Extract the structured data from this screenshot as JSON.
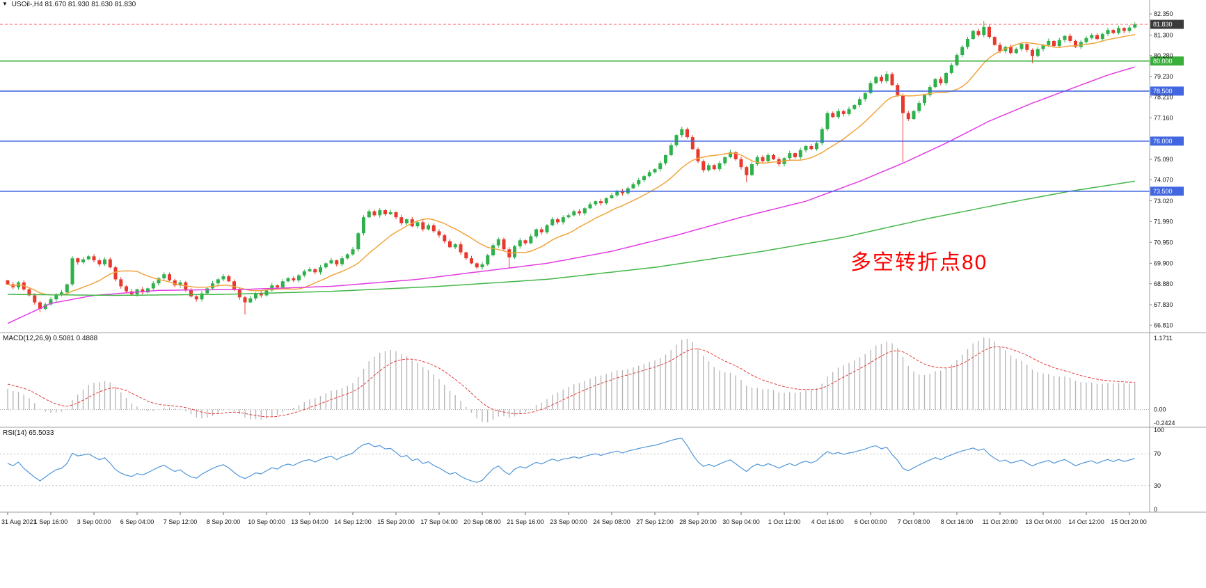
{
  "header": {
    "marker": "▼",
    "title": "USOil-,H4 81.670 81.930 81.630 81.830",
    "symbol": "USOil-",
    "timeframe": "H4"
  },
  "colors": {
    "up": "#2eb14b",
    "down": "#e8392e",
    "ma_fast": "#f2a33c",
    "ma_medium": "#e23ce2",
    "ma_slow": "#43b649",
    "level_green": "#3aae3a",
    "level_blue": "#4166e0",
    "macd_hist": "#b8b8b8",
    "macd_signal": "#e03c3c",
    "rsi_line": "#4f96d8",
    "current_box": "#3b3b3b",
    "current_line": "#ff5a5a",
    "axis_text": "#141414",
    "separator": "#9aa0a6"
  },
  "chart_data": [
    {
      "type": "candlestick",
      "symbol": "USOil-",
      "timeframe": "H4",
      "ohlc_current": {
        "open": 81.67,
        "high": 81.93,
        "low": 81.63,
        "close": 81.83
      },
      "price_range": [
        66.44,
        82.56
      ],
      "first_open": 69.05,
      "closes": [
        68.85,
        68.7,
        68.95,
        68.6,
        68.3,
        67.95,
        67.62,
        67.85,
        68.1,
        68.35,
        68.45,
        68.85,
        70.15,
        69.95,
        70.1,
        70.25,
        70.05,
        69.85,
        70.1,
        69.7,
        69.1,
        68.75,
        68.5,
        68.35,
        68.6,
        68.45,
        68.65,
        68.9,
        69.15,
        69.35,
        69.05,
        68.8,
        68.95,
        68.55,
        68.25,
        68.1,
        68.4,
        68.65,
        68.9,
        69.1,
        69.25,
        69.0,
        68.6,
        68.2,
        67.95,
        68.15,
        68.4,
        68.3,
        68.55,
        68.8,
        68.7,
        69.0,
        69.15,
        69.05,
        69.3,
        69.5,
        69.6,
        69.45,
        69.7,
        69.9,
        70.05,
        69.85,
        70.15,
        70.35,
        70.6,
        71.4,
        72.2,
        72.5,
        72.3,
        72.55,
        72.35,
        72.45,
        72.2,
        71.9,
        72.1,
        71.75,
        71.95,
        71.6,
        71.8,
        71.5,
        71.3,
        71.0,
        70.7,
        70.85,
        70.45,
        70.15,
        69.9,
        69.7,
        69.85,
        70.3,
        70.8,
        71.1,
        70.6,
        70.2,
        70.75,
        71.05,
        70.9,
        71.25,
        71.6,
        71.45,
        71.8,
        72.1,
        71.95,
        72.2,
        72.3,
        72.5,
        72.4,
        72.65,
        72.85,
        73.0,
        72.9,
        73.15,
        73.3,
        73.5,
        73.4,
        73.65,
        73.85,
        74.05,
        74.25,
        74.45,
        74.6,
        74.9,
        75.3,
        75.8,
        76.3,
        76.6,
        76.2,
        75.6,
        75.0,
        74.55,
        74.8,
        74.6,
        74.9,
        75.2,
        75.45,
        75.1,
        74.7,
        74.3,
        74.85,
        75.2,
        75.0,
        75.3,
        75.1,
        74.85,
        75.15,
        75.4,
        75.2,
        75.55,
        75.75,
        75.6,
        75.9,
        76.6,
        77.4,
        77.2,
        77.5,
        77.35,
        77.6,
        77.8,
        78.1,
        78.4,
        78.9,
        79.2,
        79.0,
        79.35,
        78.8,
        78.3,
        77.4,
        77.1,
        77.5,
        77.9,
        78.3,
        78.7,
        79.1,
        78.9,
        79.4,
        79.8,
        80.3,
        80.7,
        81.1,
        81.5,
        81.3,
        81.7,
        81.2,
        80.8,
        80.5,
        80.7,
        80.4,
        80.6,
        80.85,
        80.55,
        80.25,
        80.6,
        80.8,
        81.0,
        80.75,
        81.05,
        81.25,
        81.0,
        80.7,
        80.95,
        81.15,
        81.3,
        81.1,
        81.35,
        81.55,
        81.4,
        81.65,
        81.5,
        81.67,
        81.83
      ],
      "wick_low_overrides": {
        "6": 67.45,
        "44": 67.35,
        "93": 69.65,
        "137": 73.95,
        "166": 74.95,
        "190": 79.9,
        "209": 81.63
      },
      "wick_high_overrides": {
        "125": 76.72,
        "163": 79.5,
        "181": 82.0,
        "209": 81.93
      },
      "moving_averages": [
        {
          "name": "fast",
          "color": "#f2a33c",
          "period": 13
        },
        {
          "name": "medium",
          "color": "#e23ce2",
          "keypoints": [
            [
              0,
              66.9
            ],
            [
              8,
              67.9
            ],
            [
              16,
              68.3
            ],
            [
              28,
              68.55
            ],
            [
              44,
              68.6
            ],
            [
              60,
              68.75
            ],
            [
              76,
              69.1
            ],
            [
              88,
              69.5
            ],
            [
              100,
              69.9
            ],
            [
              112,
              70.5
            ],
            [
              124,
              71.3
            ],
            [
              136,
              72.2
            ],
            [
              148,
              73.0
            ],
            [
              158,
              74.0
            ],
            [
              166,
              74.9
            ],
            [
              174,
              75.9
            ],
            [
              182,
              77.0
            ],
            [
              190,
              77.9
            ],
            [
              198,
              78.7
            ],
            [
              204,
              79.3
            ],
            [
              209,
              79.7
            ]
          ]
        },
        {
          "name": "slow",
          "color": "#43b649",
          "keypoints": [
            [
              0,
              68.35
            ],
            [
              20,
              68.3
            ],
            [
              40,
              68.35
            ],
            [
              60,
              68.5
            ],
            [
              80,
              68.75
            ],
            [
              100,
              69.1
            ],
            [
              120,
              69.7
            ],
            [
              140,
              70.5
            ],
            [
              155,
              71.2
            ],
            [
              170,
              72.1
            ],
            [
              185,
              72.9
            ],
            [
              197,
              73.5
            ],
            [
              209,
              74.0
            ]
          ]
        }
      ],
      "hlines": [
        {
          "price": 80.0,
          "label": "80.000",
          "color": "#3aae3a"
        },
        {
          "price": 78.5,
          "label": "78.500",
          "color": "#4166e0"
        },
        {
          "price": 76.0,
          "label": "76.000",
          "color": "#4166e0"
        },
        {
          "price": 73.5,
          "label": "73.500",
          "color": "#4166e0"
        }
      ],
      "current_price": {
        "price": 81.83,
        "label": "81.830",
        "box": "#3b3b3b",
        "line": "#ff5a5a"
      },
      "axis_labels": [
        {
          "t": "82.350",
          "p": 82.35
        },
        {
          "t": "81.300",
          "p": 81.3
        },
        {
          "t": "80.280",
          "p": 80.28
        },
        {
          "t": "79.230",
          "p": 79.23
        },
        {
          "t": "78.210",
          "p": 78.21
        },
        {
          "t": "77.160",
          "p": 77.16
        },
        {
          "t": "75.090",
          "p": 75.09
        },
        {
          "t": "74.070",
          "p": 74.07
        },
        {
          "t": "73.020",
          "p": 73.02
        },
        {
          "t": "71.990",
          "p": 71.99
        },
        {
          "t": "70.950",
          "p": 70.95
        },
        {
          "t": "69.900",
          "p": 69.9
        },
        {
          "t": "68.880",
          "p": 68.88
        },
        {
          "t": "67.830",
          "p": 67.83
        },
        {
          "t": "66.810",
          "p": 66.81
        }
      ],
      "x_axis_labels": [
        "31 Aug 2021",
        "1 Sep 16:00",
        "3 Sep 00:00",
        "6 Sep 04:00",
        "7 Sep 12:00",
        "8 Sep 20:00",
        "10 Sep 00:00",
        "13 Sep 04:00",
        "14 Sep 12:00",
        "15 Sep 20:00",
        "17 Sep 04:00",
        "20 Sep 08:00",
        "21 Sep 16:00",
        "23 Sep 00:00",
        "24 Sep 08:00",
        "27 Sep 12:00",
        "28 Sep 20:00",
        "30 Sep 04:00",
        "1 Oct 12:00",
        "4 Oct 16:00",
        "6 Oct 00:00",
        "7 Oct 08:00",
        "8 Oct 16:00",
        "11 Oct 20:00",
        "13 Oct 04:00",
        "14 Oct 12:00",
        "15 Oct 20:00"
      ],
      "annotation": {
        "text": "多空转折点80",
        "color": "#ff0000"
      }
    },
    {
      "type": "macd",
      "label": "MACD(12,26,9) 0.5081 0.4888",
      "params": [
        12,
        26,
        9
      ],
      "current_values": [
        0.5081,
        0.4888
      ],
      "axis_labels": [
        "1.1711",
        "0.00",
        "-0.2424"
      ],
      "range": [
        -0.2424,
        1.1711
      ]
    },
    {
      "type": "rsi",
      "label": "RSI(14) 65.5033",
      "period": 14,
      "current_value": 65.5033,
      "levels": [
        70,
        30
      ],
      "axis_labels": [
        "100",
        "70",
        "30",
        "0"
      ],
      "range": [
        0,
        100
      ]
    }
  ]
}
